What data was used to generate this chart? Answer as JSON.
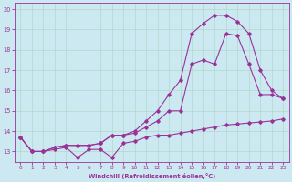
{
  "xlabel": "Windchill (Refroidissement éolien,°C)",
  "bg_color": "#cce8f0",
  "line_color": "#993399",
  "xlim": [
    -0.5,
    23.5
  ],
  "ylim": [
    12.5,
    20.3
  ],
  "xticks": [
    0,
    1,
    2,
    3,
    4,
    5,
    6,
    7,
    8,
    9,
    10,
    11,
    12,
    13,
    14,
    15,
    16,
    17,
    18,
    19,
    20,
    21,
    22,
    23
  ],
  "yticks": [
    13,
    14,
    15,
    16,
    17,
    18,
    19,
    20
  ],
  "grid_color": "#b0d8cc",
  "line1_x": [
    0,
    1,
    2,
    3,
    4,
    5,
    6,
    7,
    8,
    9,
    10,
    11,
    12,
    13,
    14,
    15,
    16,
    17,
    18,
    19,
    20,
    21,
    22,
    23
  ],
  "line1_y": [
    13.7,
    13.0,
    13.0,
    13.1,
    13.2,
    12.7,
    13.1,
    13.1,
    12.7,
    13.4,
    13.5,
    13.7,
    13.8,
    13.8,
    13.9,
    14.0,
    14.1,
    14.2,
    14.3,
    14.35,
    14.4,
    14.45,
    14.5,
    14.6
  ],
  "line2_x": [
    0,
    1,
    2,
    3,
    4,
    5,
    6,
    7,
    8,
    9,
    10,
    11,
    12,
    13,
    14,
    15,
    16,
    17,
    18,
    19,
    20,
    21,
    22,
    23
  ],
  "line2_y": [
    13.7,
    13.0,
    13.0,
    13.2,
    13.3,
    13.3,
    13.3,
    13.4,
    13.8,
    13.8,
    13.9,
    14.2,
    14.5,
    15.0,
    15.0,
    17.3,
    17.5,
    17.3,
    18.8,
    18.7,
    17.3,
    15.8,
    15.8,
    15.6
  ],
  "line3_x": [
    0,
    1,
    2,
    3,
    4,
    5,
    6,
    7,
    8,
    9,
    10,
    11,
    12,
    13,
    14,
    15,
    16,
    17,
    18,
    19,
    20,
    21,
    22,
    23
  ],
  "line3_y": [
    13.7,
    13.0,
    13.0,
    13.2,
    13.3,
    13.3,
    13.3,
    13.4,
    13.8,
    13.8,
    14.0,
    14.5,
    15.0,
    15.8,
    16.5,
    18.8,
    19.3,
    19.7,
    19.7,
    19.4,
    18.8,
    17.0,
    16.0,
    15.6
  ]
}
